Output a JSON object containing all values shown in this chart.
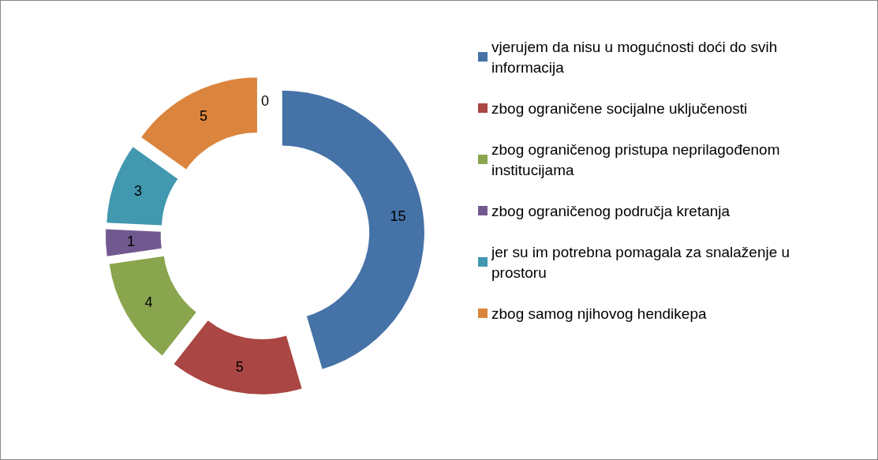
{
  "chart_data": {
    "type": "donut",
    "categories": [
      "vjerujem da nisu u mogućnosti doći do svih informacija",
      "zbog ograničene socijalne uključenosti",
      "zbog ograničenog pristupa neprilagođenom institucijama",
      "zbog ograničenog područja kretanja",
      "jer su im potrebna pomagala za snalaženje u prostoru",
      "zbog samog njihovog hendikepa",
      null
    ],
    "values": [
      15,
      5,
      4,
      1,
      3,
      5,
      0
    ],
    "colors": [
      "#4572a7",
      "#aa4643",
      "#89a54e",
      "#71588f",
      "#4198af",
      "#db843d",
      "#93a9cf"
    ],
    "value_labels": [
      "15",
      "5",
      "4",
      "1",
      "3",
      "5",
      "0"
    ],
    "legend": "right"
  }
}
